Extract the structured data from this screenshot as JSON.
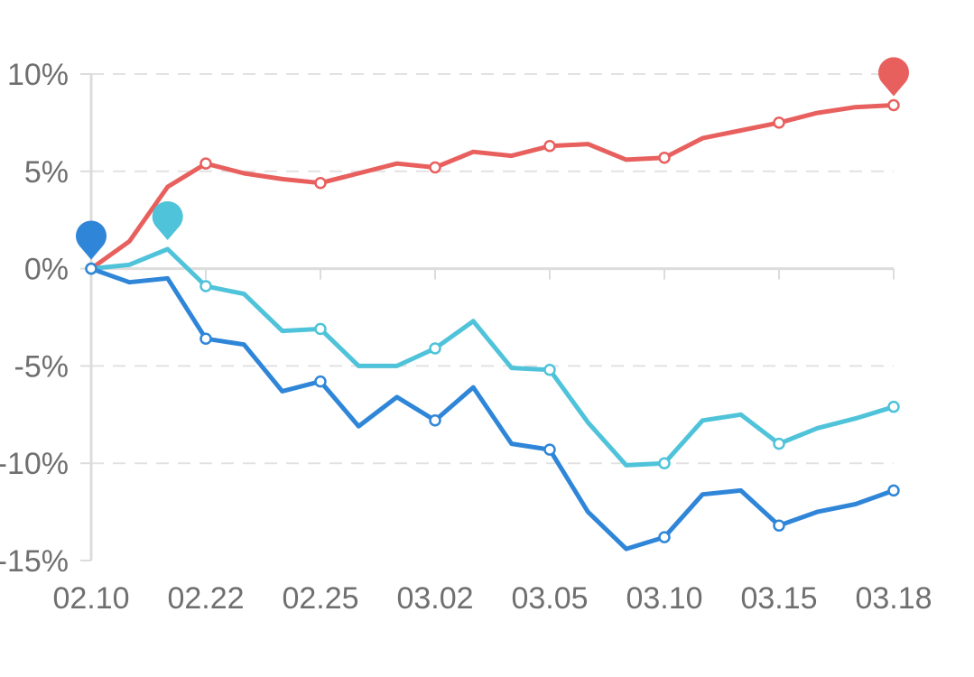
{
  "chart_data": {
    "type": "line",
    "title": "",
    "xlabel": "",
    "ylabel": "",
    "ylim": [
      -15,
      10
    ],
    "yticks": [
      10,
      5,
      0,
      -5,
      -10,
      -15
    ],
    "ytick_labels": [
      "10%",
      "5%",
      "0%",
      "-5%",
      "-10%",
      "-15%"
    ],
    "x_tick_labels": [
      "02.10",
      "02.22",
      "02.25",
      "03.02",
      "03.05",
      "03.10",
      "03.15",
      "03.18"
    ],
    "x_tick_positions": [
      0,
      3,
      6,
      9,
      12,
      15,
      18,
      21
    ],
    "x_range": [
      0,
      21
    ],
    "grid": "horizontal dashed",
    "legend": "none",
    "series": [
      {
        "color": "#e8605e",
        "x": [
          0,
          1,
          2,
          3,
          4,
          5,
          6,
          7,
          8,
          9,
          10,
          11,
          12,
          13,
          14,
          15,
          16,
          17,
          18,
          19,
          20,
          21
        ],
        "values": [
          0,
          1.4,
          4.2,
          5.4,
          4.9,
          4.6,
          4.4,
          4.9,
          5.4,
          5.2,
          6.0,
          5.8,
          6.3,
          6.4,
          5.6,
          5.7,
          6.7,
          7.1,
          7.5,
          8.0,
          8.3,
          8.4
        ],
        "markers_at": [
          0,
          3,
          6,
          9,
          12,
          15,
          18,
          21
        ],
        "pin_at": 21
      },
      {
        "color": "#4fc3d9",
        "x": [
          0,
          1,
          2,
          3,
          4,
          5,
          6,
          7,
          8,
          9,
          10,
          11,
          12,
          13,
          14,
          15,
          16,
          17,
          18,
          19,
          20,
          21
        ],
        "values": [
          0,
          0.2,
          1.0,
          -0.9,
          -1.3,
          -3.2,
          -3.1,
          -5.0,
          -5.0,
          -4.1,
          -2.7,
          -5.1,
          -5.2,
          -7.9,
          -10.1,
          -10.0,
          -7.8,
          -7.5,
          -9.0,
          -8.2,
          -7.7,
          -7.1
        ],
        "markers_at": [
          0,
          3,
          6,
          9,
          12,
          15,
          18,
          21
        ],
        "pin_at": 2
      },
      {
        "color": "#2f86d8",
        "x": [
          0,
          1,
          2,
          3,
          4,
          5,
          6,
          7,
          8,
          9,
          10,
          11,
          12,
          13,
          14,
          15,
          16,
          17,
          18,
          19,
          20,
          21
        ],
        "values": [
          0,
          -0.7,
          -0.5,
          -3.6,
          -3.9,
          -6.3,
          -5.8,
          -8.1,
          -6.6,
          -7.8,
          -6.1,
          -9.0,
          -9.3,
          -12.5,
          -14.4,
          -13.8,
          -11.6,
          -11.4,
          -13.2,
          -12.5,
          -12.1,
          -11.4
        ],
        "markers_at": [
          0,
          3,
          6,
          9,
          12,
          15,
          18,
          21
        ],
        "pin_at": 0
      }
    ]
  }
}
